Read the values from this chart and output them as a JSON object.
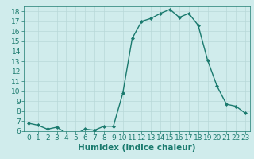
{
  "x": [
    0,
    1,
    2,
    3,
    4,
    5,
    6,
    7,
    8,
    9,
    10,
    11,
    12,
    13,
    14,
    15,
    16,
    17,
    18,
    19,
    20,
    21,
    22,
    23
  ],
  "y": [
    6.8,
    6.6,
    6.2,
    6.4,
    5.8,
    5.7,
    6.2,
    6.1,
    6.5,
    6.5,
    9.8,
    15.3,
    17.0,
    17.3,
    17.8,
    18.2,
    17.4,
    17.8,
    16.6,
    13.1,
    10.5,
    8.7,
    8.5,
    7.8
  ],
  "line_color": "#1a7a6e",
  "marker": "D",
  "marker_size": 2.0,
  "bg_color": "#d0ecec",
  "grid_color": "#b8d8d8",
  "xlabel": "Humidex (Indice chaleur)",
  "ylim": [
    6,
    18.5
  ],
  "xlim": [
    -0.5,
    23.5
  ],
  "yticks": [
    6,
    7,
    8,
    9,
    10,
    11,
    12,
    13,
    14,
    15,
    16,
    17,
    18
  ],
  "xticks": [
    0,
    1,
    2,
    3,
    4,
    5,
    6,
    7,
    8,
    9,
    10,
    11,
    12,
    13,
    14,
    15,
    16,
    17,
    18,
    19,
    20,
    21,
    22,
    23
  ],
  "tick_color": "#1a7a6e",
  "label_color": "#1a7a6e",
  "tick_fontsize": 6.5,
  "xlabel_fontsize": 7.5,
  "linewidth": 1.0
}
